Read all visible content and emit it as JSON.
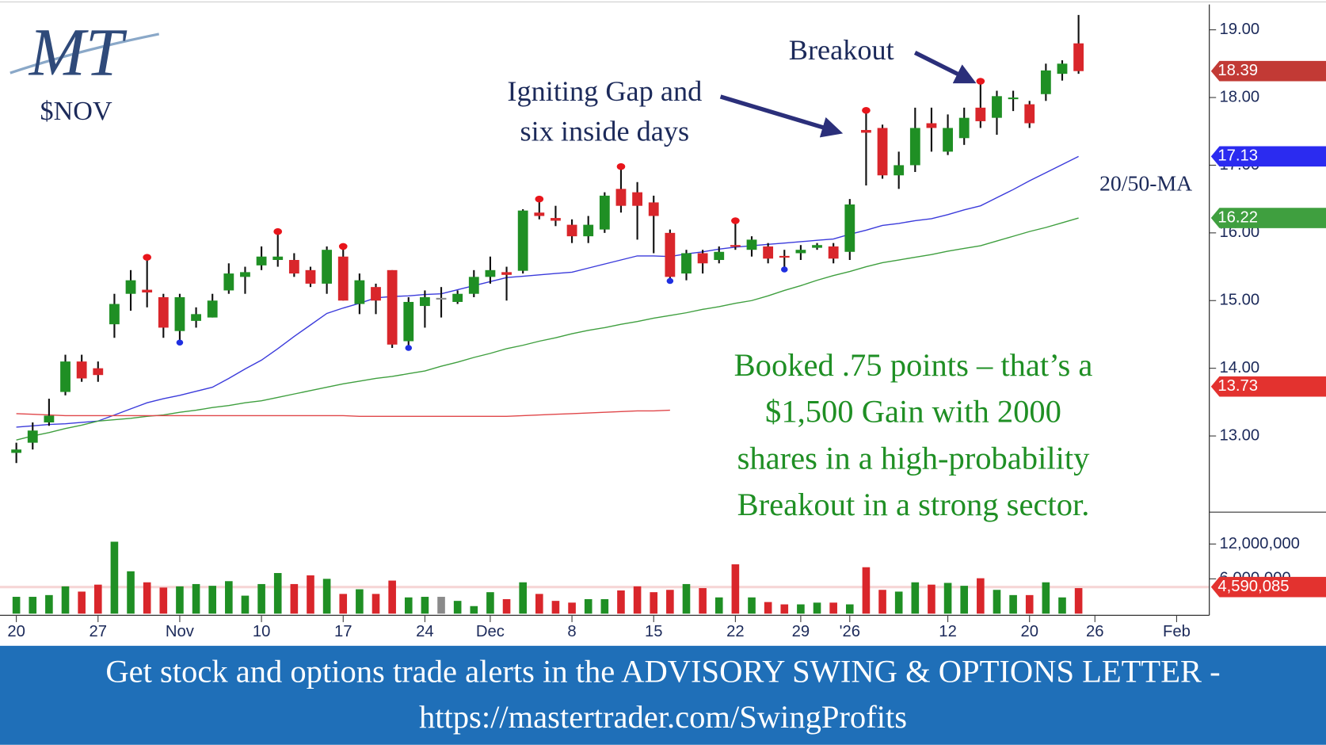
{
  "chart_data": {
    "type": "candlestick",
    "logo": "MT",
    "ticker": "$NOV",
    "xlim": [
      -1,
      73
    ],
    "xticks": [
      {
        "value": 0,
        "label": "20"
      },
      {
        "value": 5,
        "label": "27"
      },
      {
        "value": 10,
        "label": "Nov"
      },
      {
        "value": 15,
        "label": "10"
      },
      {
        "value": 20,
        "label": "17"
      },
      {
        "value": 25,
        "label": "24"
      },
      {
        "value": 29,
        "label": "Dec"
      },
      {
        "value": 34,
        "label": "8"
      },
      {
        "value": 39,
        "label": "15"
      },
      {
        "value": 44,
        "label": "22"
      },
      {
        "value": 48,
        "label": "29"
      },
      {
        "value": 51,
        "label": "'26"
      },
      {
        "value": 57,
        "label": "12"
      },
      {
        "value": 62,
        "label": "20"
      },
      {
        "value": 66,
        "label": "26"
      },
      {
        "value": 71,
        "label": "Feb"
      }
    ],
    "ylim": [
      11.875,
      19.375
    ],
    "yticks": [
      {
        "value": 13,
        "label": "13.00"
      },
      {
        "value": 14,
        "label": "14.00"
      },
      {
        "value": 15,
        "label": "15.00"
      },
      {
        "value": 16,
        "label": "16.00"
      },
      {
        "value": 17,
        "label": "17.00"
      },
      {
        "value": 18,
        "label": "18.00"
      },
      {
        "value": 19,
        "label": "19.00"
      }
    ],
    "open": [
      12.75,
      12.9,
      13.2,
      13.65,
      14.1,
      14.0,
      14.65,
      15.1,
      15.16,
      15.05,
      14.55,
      14.7,
      14.75,
      15.15,
      15.35,
      15.52,
      15.6,
      15.6,
      15.45,
      15.25,
      15.65,
      14.95,
      15.2,
      15.45,
      14.4,
      14.92,
      15.04,
      14.98,
      15.1,
      15.35,
      15.42,
      15.44,
      16.3,
      16.22,
      16.12,
      15.95,
      16.05,
      16.65,
      16.6,
      16.45,
      16.0,
      15.4,
      15.7,
      15.6,
      15.82,
      15.75,
      15.8,
      15.66,
      15.7,
      15.78,
      15.8,
      15.72,
      17.52,
      17.55,
      16.85,
      17.0,
      17.62,
      17.2,
      17.4,
      17.85,
      17.7,
      17.98,
      17.9,
      18.05,
      18.35,
      18.8
    ],
    "high": [
      12.9,
      13.2,
      13.55,
      14.2,
      14.2,
      14.1,
      15.1,
      15.45,
      15.64,
      15.1,
      15.1,
      14.9,
      15.1,
      15.55,
      15.5,
      15.8,
      16.02,
      15.7,
      15.5,
      15.8,
      15.8,
      15.4,
      15.25,
      15.45,
      15.05,
      15.15,
      15.2,
      15.15,
      15.45,
      15.65,
      15.5,
      16.35,
      16.5,
      16.4,
      16.2,
      16.25,
      16.6,
      16.98,
      16.75,
      16.55,
      16.05,
      15.75,
      15.75,
      15.8,
      16.18,
      15.95,
      15.85,
      15.75,
      15.82,
      15.85,
      15.85,
      16.5,
      17.81,
      17.6,
      17.2,
      17.85,
      17.85,
      17.75,
      17.85,
      18.24,
      18.1,
      18.1,
      17.95,
      18.5,
      18.55,
      19.22
    ],
    "low": [
      12.6,
      12.8,
      13.15,
      13.6,
      13.8,
      13.8,
      14.45,
      14.85,
      14.9,
      14.45,
      14.38,
      14.6,
      14.75,
      15.1,
      15.1,
      15.45,
      15.5,
      15.35,
      15.2,
      15.1,
      15.0,
      14.8,
      14.8,
      14.3,
      14.3,
      14.6,
      14.75,
      14.95,
      15.05,
      15.25,
      15.0,
      15.4,
      16.2,
      16.1,
      15.85,
      15.85,
      16.0,
      16.3,
      15.9,
      15.7,
      15.29,
      15.3,
      15.4,
      15.55,
      15.75,
      15.65,
      15.55,
      15.46,
      15.6,
      15.75,
      15.55,
      15.6,
      16.7,
      16.8,
      16.65,
      16.9,
      17.2,
      17.15,
      17.3,
      17.55,
      17.45,
      17.8,
      17.55,
      17.95,
      18.25,
      18.35
    ],
    "close": [
      12.8,
      13.08,
      13.3,
      14.1,
      13.85,
      13.9,
      14.95,
      15.3,
      15.12,
      14.6,
      15.05,
      14.8,
      15.0,
      15.4,
      15.42,
      15.65,
      15.65,
      15.4,
      15.25,
      15.75,
      15.0,
      15.3,
      15.0,
      14.35,
      14.98,
      15.05,
      15.04,
      15.1,
      15.35,
      15.45,
      15.38,
      16.33,
      16.25,
      16.18,
      15.95,
      16.12,
      16.55,
      16.4,
      16.4,
      16.25,
      15.35,
      15.7,
      15.55,
      15.72,
      15.8,
      15.9,
      15.62,
      15.64,
      15.75,
      15.82,
      15.62,
      16.42,
      17.48,
      16.85,
      17.0,
      17.55,
      17.55,
      17.55,
      17.7,
      17.65,
      18.02,
      18.0,
      17.62,
      18.4,
      18.5,
      18.39
    ],
    "up_color": "#1f8f24",
    "down_color": "#d9262b",
    "flat_color": "#8a8a8a",
    "pivot_highs": [
      8,
      16,
      20,
      32,
      37,
      44,
      52,
      59
    ],
    "pivot_lows": [
      10,
      24,
      40,
      47
    ],
    "moving_averages": [
      {
        "color": "#3b3bdb",
        "values": [
          13.13,
          13.15,
          13.17,
          13.18,
          13.2,
          13.22,
          13.31,
          13.4,
          13.49,
          13.55,
          13.6,
          13.66,
          13.72,
          13.85,
          13.99,
          14.12,
          14.29,
          14.47,
          14.64,
          14.81,
          14.89,
          14.96,
          15.04,
          15.06,
          15.07,
          15.09,
          15.1,
          15.16,
          15.22,
          15.28,
          15.34,
          15.36,
          15.38,
          15.4,
          15.42,
          15.48,
          15.54,
          15.6,
          15.66,
          15.66,
          15.65,
          15.69,
          15.72,
          15.76,
          15.79,
          15.81,
          15.83,
          15.85,
          15.87,
          15.89,
          15.91,
          15.98,
          16.04,
          16.11,
          16.14,
          16.18,
          16.21,
          16.27,
          16.34,
          16.4,
          16.52,
          16.64,
          16.77,
          16.89,
          17.01,
          17.13
        ]
      },
      {
        "color": "#3f9f3f",
        "values": [
          12.94,
          13.0,
          13.05,
          13.11,
          13.16,
          13.22,
          13.24,
          13.26,
          13.29,
          13.31,
          13.35,
          13.38,
          13.42,
          13.45,
          13.49,
          13.52,
          13.57,
          13.62,
          13.67,
          13.72,
          13.77,
          13.81,
          13.85,
          13.88,
          13.92,
          13.96,
          14.03,
          14.09,
          14.16,
          14.22,
          14.29,
          14.34,
          14.4,
          14.45,
          14.51,
          14.56,
          14.6,
          14.65,
          14.69,
          14.74,
          14.78,
          14.82,
          14.87,
          14.91,
          14.96,
          15.0,
          15.07,
          15.15,
          15.22,
          15.3,
          15.37,
          15.43,
          15.5,
          15.56,
          15.6,
          15.64,
          15.68,
          15.73,
          15.77,
          15.81,
          15.88,
          15.95,
          16.02,
          16.08,
          16.15,
          16.22
        ]
      },
      {
        "color": "#e0474a",
        "values": [
          13.33,
          13.32,
          13.31,
          13.3,
          13.3,
          13.3,
          13.3,
          13.3,
          13.3,
          13.3,
          13.3,
          13.3,
          13.3,
          13.3,
          13.3,
          13.3,
          13.3,
          13.3,
          13.3,
          13.3,
          13.3,
          13.29,
          13.29,
          13.29,
          13.29,
          13.29,
          13.29,
          13.29,
          13.29,
          13.29,
          13.29,
          13.3,
          13.31,
          13.32,
          13.33,
          13.34,
          13.35,
          13.36,
          13.37,
          13.37,
          13.38,
          null,
          null,
          null,
          null,
          null,
          null,
          null,
          null,
          null,
          null,
          null,
          null,
          null,
          null,
          null,
          null,
          null,
          null,
          null,
          null,
          null,
          null,
          null,
          null,
          null
        ]
      }
    ],
    "price_tags": [
      {
        "value": 18.39,
        "color": "#c23a35"
      },
      {
        "value": 17.13,
        "color": "#2b2bf0"
      },
      {
        "value": 16.22,
        "color": "#3f9f3f"
      },
      {
        "value": 13.73,
        "color": "#e3322f"
      }
    ],
    "volume": {
      "values": [
        2900000,
        2900000,
        3200000,
        4700000,
        3800000,
        5000000,
        12400000,
        7300000,
        5400000,
        4500000,
        4700000,
        5100000,
        4800000,
        5600000,
        3100000,
        5100000,
        7000000,
        5100000,
        6600000,
        6000000,
        3400000,
        4200000,
        3400000,
        5700000,
        2800000,
        2900000,
        2900000,
        2200000,
        1300000,
        3700000,
        2500000,
        5400000,
        3400000,
        2200000,
        1900000,
        2500000,
        2500000,
        4000000,
        4700000,
        3700000,
        4100000,
        5100000,
        4400000,
        2800000,
        8500000,
        2800000,
        2000000,
        1600000,
        1600000,
        1900000,
        1900000,
        1600000,
        8000000,
        4100000,
        3800000,
        5400000,
        5000000,
        5300000,
        4800000,
        6100000,
        4100000,
        3200000,
        3200000,
        5400000,
        2800000,
        4400000
      ],
      "ylim": [
        0,
        17500000
      ],
      "yticks": [
        {
          "value": 6000000,
          "label": "6,000,000"
        },
        {
          "value": 12000000,
          "label": "12,000,000"
        }
      ],
      "tag": {
        "value": 4590085,
        "label": "4,590,085",
        "color": "#e3322f"
      }
    },
    "annotations": {
      "breakout": "Breakout",
      "gap": [
        "Igniting Gap and",
        "six inside days"
      ],
      "ma": "20/50-MA",
      "note": [
        "Booked .75 points – that’s a",
        "$1,500 Gain with 2000",
        "shares in a high-probability",
        "Breakout in a strong sector."
      ]
    }
  },
  "footer": [
    "Get stock and options trade alerts in the ADVISORY SWING & OPTIONS LETTER -",
    "https://mastertrader.com/SwingProfits"
  ]
}
